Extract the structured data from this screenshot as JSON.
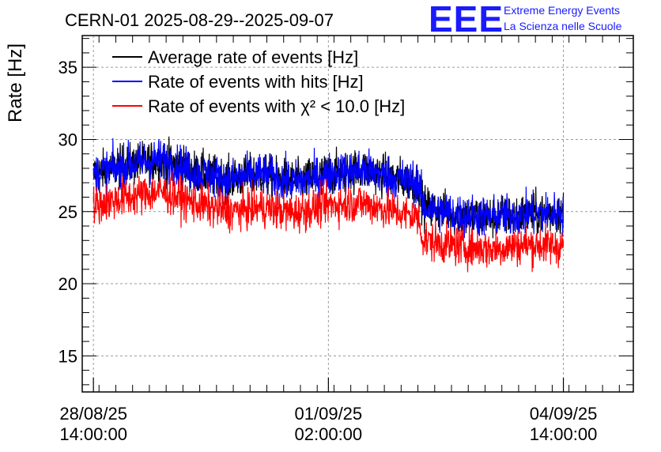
{
  "title": "CERN-01 2025-08-29--2025-09-07",
  "logo": {
    "letters": "EEE",
    "line1": "Extreme Energy Events",
    "line2": "La Scienza nelle Scuole"
  },
  "chart_data": {
    "type": "line",
    "title": "CERN-01 2025-08-29--2025-09-07",
    "ylabel": "Rate [Hz]",
    "xlabel": "",
    "ylim": [
      12.5,
      37.2
    ],
    "y_ticks": [
      15,
      20,
      25,
      30,
      35
    ],
    "x_ticks": [
      {
        "date": "28/08/25",
        "time": "14:00:00"
      },
      {
        "date": "01/09/25",
        "time": "02:00:00"
      },
      {
        "date": "04/09/25",
        "time": "14:00:00"
      }
    ],
    "xlim_start": "2025-08-28T10:00:00",
    "xlim_end": "2025-09-05T15:00:00",
    "data_start": "2025-08-28T14:00:00",
    "data_end": "2025-09-04T14:00:00",
    "grid": true,
    "legend_placement": "top-left",
    "series": [
      {
        "name": "Average rate of events [Hz]",
        "color": "#000000",
        "trend": [
          [
            "2025-08-28T14:00:00",
            27.6
          ],
          [
            "2025-08-29T02:00:00",
            28.2
          ],
          [
            "2025-08-29T14:00:00",
            28.6
          ],
          [
            "2025-08-30T02:00:00",
            27.8
          ],
          [
            "2025-08-30T14:00:00",
            27.2
          ],
          [
            "2025-08-31T02:00:00",
            27.6
          ],
          [
            "2025-08-31T14:00:00",
            27.0
          ],
          [
            "2025-09-01T02:00:00",
            27.6
          ],
          [
            "2025-09-01T14:00:00",
            27.9
          ],
          [
            "2025-09-02T02:00:00",
            27.3
          ],
          [
            "2025-09-02T10:00:00",
            27.0
          ],
          [
            "2025-09-02T12:00:00",
            25.3
          ],
          [
            "2025-09-03T00:00:00",
            24.8
          ],
          [
            "2025-09-03T12:00:00",
            24.6
          ],
          [
            "2025-09-04T00:00:00",
            24.8
          ],
          [
            "2025-09-04T14:00:00",
            24.9
          ]
        ],
        "noise": 1.4
      },
      {
        "name": "Rate of events with hits [Hz]",
        "color": "#0000ff",
        "trend": [
          [
            "2025-08-28T14:00:00",
            27.6
          ],
          [
            "2025-08-29T02:00:00",
            28.2
          ],
          [
            "2025-08-29T14:00:00",
            28.6
          ],
          [
            "2025-08-30T02:00:00",
            27.8
          ],
          [
            "2025-08-30T14:00:00",
            27.2
          ],
          [
            "2025-08-31T02:00:00",
            27.6
          ],
          [
            "2025-08-31T14:00:00",
            27.0
          ],
          [
            "2025-09-01T02:00:00",
            27.6
          ],
          [
            "2025-09-01T14:00:00",
            27.9
          ],
          [
            "2025-09-02T02:00:00",
            27.3
          ],
          [
            "2025-09-02T10:00:00",
            27.0
          ],
          [
            "2025-09-02T12:00:00",
            25.3
          ],
          [
            "2025-09-03T00:00:00",
            24.8
          ],
          [
            "2025-09-03T12:00:00",
            24.6
          ],
          [
            "2025-09-04T00:00:00",
            24.8
          ],
          [
            "2025-09-04T14:00:00",
            24.9
          ]
        ],
        "noise": 1.4
      },
      {
        "name": "Rate of events with χ² < 10.0 [Hz]",
        "color": "#ff0000",
        "trend": [
          [
            "2025-08-28T14:00:00",
            25.4
          ],
          [
            "2025-08-29T02:00:00",
            26.0
          ],
          [
            "2025-08-29T14:00:00",
            26.4
          ],
          [
            "2025-08-30T02:00:00",
            25.6
          ],
          [
            "2025-08-30T14:00:00",
            25.0
          ],
          [
            "2025-08-31T02:00:00",
            25.3
          ],
          [
            "2025-08-31T14:00:00",
            24.9
          ],
          [
            "2025-09-01T02:00:00",
            25.5
          ],
          [
            "2025-09-01T14:00:00",
            25.6
          ],
          [
            "2025-09-02T02:00:00",
            25.0
          ],
          [
            "2025-09-02T10:00:00",
            24.6
          ],
          [
            "2025-09-02T12:00:00",
            23.0
          ],
          [
            "2025-09-03T00:00:00",
            22.6
          ],
          [
            "2025-09-03T12:00:00",
            22.4
          ],
          [
            "2025-09-04T00:00:00",
            22.7
          ],
          [
            "2025-09-04T14:00:00",
            22.6
          ]
        ],
        "noise": 1.3
      }
    ]
  }
}
